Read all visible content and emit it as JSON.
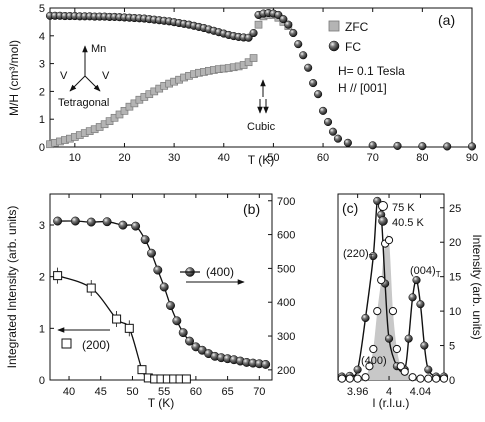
{
  "chart_data": [
    {
      "panel": "(a)",
      "type": "scatter",
      "xlabel": "T (K)",
      "ylabel": "M/H (cm³/mol)",
      "xlim": [
        5,
        90
      ],
      "ylim": [
        0,
        5
      ],
      "xticks": [
        10,
        20,
        30,
        40,
        50,
        60,
        70,
        80,
        90
      ],
      "yticks": [
        0,
        1,
        2,
        3,
        4,
        5
      ],
      "legend_position": "top-right",
      "series": [
        {
          "name": "ZFC",
          "marker": "square",
          "color": "#b4b4b4",
          "points": [
            [
              5,
              0.1
            ],
            [
              6,
              0.15
            ],
            [
              7,
              0.2
            ],
            [
              8,
              0.25
            ],
            [
              9,
              0.3
            ],
            [
              10,
              0.36
            ],
            [
              11,
              0.43
            ],
            [
              12,
              0.5
            ],
            [
              13,
              0.57
            ],
            [
              14,
              0.64
            ],
            [
              15,
              0.72
            ],
            [
              16,
              0.82
            ],
            [
              17,
              0.93
            ],
            [
              18,
              1.05
            ],
            [
              19,
              1.17
            ],
            [
              20,
              1.3
            ],
            [
              21,
              1.45
            ],
            [
              22,
              1.57
            ],
            [
              23,
              1.7
            ],
            [
              24,
              1.8
            ],
            [
              25,
              1.9
            ],
            [
              26,
              2.0
            ],
            [
              27,
              2.1
            ],
            [
              28,
              2.2
            ],
            [
              29,
              2.28
            ],
            [
              30,
              2.35
            ],
            [
              31,
              2.42
            ],
            [
              32,
              2.5
            ],
            [
              33,
              2.56
            ],
            [
              34,
              2.62
            ],
            [
              35,
              2.67
            ],
            [
              36,
              2.7
            ],
            [
              37,
              2.74
            ],
            [
              38,
              2.77
            ],
            [
              39,
              2.8
            ],
            [
              40,
              2.82
            ],
            [
              41,
              2.84
            ],
            [
              42,
              2.87
            ],
            [
              43,
              2.9
            ],
            [
              44,
              2.95
            ],
            [
              45,
              3.05
            ],
            [
              46,
              3.2
            ],
            [
              47,
              4.4
            ],
            [
              48,
              4.7
            ],
            [
              49,
              4.75
            ],
            [
              50,
              4.75
            ],
            [
              51,
              4.65
            ],
            [
              52,
              4.5
            ],
            [
              53,
              4.35
            ]
          ]
        },
        {
          "name": "FC",
          "marker": "sphere",
          "color": "#1a1a1a",
          "points": [
            [
              5,
              4.72
            ],
            [
              6,
              4.72
            ],
            [
              7,
              4.72
            ],
            [
              8,
              4.71
            ],
            [
              9,
              4.71
            ],
            [
              10,
              4.71
            ],
            [
              11,
              4.7
            ],
            [
              12,
              4.7
            ],
            [
              13,
              4.7
            ],
            [
              14,
              4.69
            ],
            [
              15,
              4.69
            ],
            [
              16,
              4.69
            ],
            [
              17,
              4.68
            ],
            [
              18,
              4.68
            ],
            [
              19,
              4.67
            ],
            [
              20,
              4.66
            ],
            [
              21,
              4.65
            ],
            [
              22,
              4.64
            ],
            [
              23,
              4.63
            ],
            [
              24,
              4.62
            ],
            [
              25,
              4.6
            ],
            [
              26,
              4.58
            ],
            [
              27,
              4.56
            ],
            [
              28,
              4.54
            ],
            [
              29,
              4.52
            ],
            [
              30,
              4.49
            ],
            [
              31,
              4.46
            ],
            [
              32,
              4.43
            ],
            [
              33,
              4.4
            ],
            [
              34,
              4.36
            ],
            [
              35,
              4.32
            ],
            [
              36,
              4.28
            ],
            [
              37,
              4.23
            ],
            [
              38,
              4.18
            ],
            [
              39,
              4.13
            ],
            [
              40,
              4.08
            ],
            [
              41,
              4.03
            ],
            [
              42,
              3.99
            ],
            [
              43,
              3.96
            ],
            [
              44,
              3.94
            ],
            [
              45,
              3.93
            ],
            [
              46,
              4.1
            ],
            [
              47,
              4.75
            ],
            [
              48,
              4.8
            ],
            [
              49,
              4.82
            ],
            [
              50,
              4.8
            ],
            [
              51,
              4.75
            ],
            [
              52,
              4.6
            ],
            [
              53,
              4.4
            ],
            [
              54,
              4.1
            ],
            [
              55,
              3.7
            ],
            [
              56,
              3.3
            ],
            [
              57,
              2.85
            ],
            [
              58,
              2.3
            ],
            [
              59,
              1.9
            ],
            [
              60,
              1.3
            ],
            [
              61,
              0.9
            ],
            [
              62,
              0.55
            ],
            [
              63,
              0.3
            ],
            [
              65,
              0.15
            ],
            [
              70,
              0.06
            ],
            [
              75,
              0.04
            ],
            [
              80,
              0.03
            ],
            [
              85,
              0.02
            ],
            [
              90,
              0.02
            ]
          ]
        }
      ],
      "annotations": {
        "field": "H= 0.1 Tesla",
        "direction": "H // [001]",
        "tetragonal": "Tetragonal",
        "cubic": "Cubic",
        "mn": "Mn",
        "v": "V"
      }
    },
    {
      "panel": "(b)",
      "type": "scatter",
      "xlabel": "T (K)",
      "ylabel_left": "Integrated Intensity (arb. units)",
      "xlim": [
        37,
        72
      ],
      "ylim_left": [
        0,
        3.6
      ],
      "ylim_right": [
        170,
        720
      ],
      "xticks": [
        40,
        45,
        50,
        55,
        60,
        65,
        70
      ],
      "yticks_left": [
        0,
        1,
        2,
        3
      ],
      "yticks_right": [
        200,
        300,
        400,
        500,
        600,
        700
      ],
      "series": [
        {
          "name": "(200)",
          "axis": "left",
          "marker": "open-square",
          "points": [
            [
              38.2,
              2.02
            ],
            [
              43.5,
              1.78
            ],
            [
              47.5,
              1.18
            ],
            [
              49.5,
              1.0
            ],
            [
              51.5,
              0.2
            ],
            [
              52.5,
              0.04
            ],
            [
              53.5,
              0.02
            ],
            [
              54.5,
              0.02
            ],
            [
              55.5,
              0.02
            ],
            [
              56.5,
              0.02
            ],
            [
              57.5,
              0.02
            ],
            [
              58.5,
              0.02
            ]
          ]
        },
        {
          "name": "(400)",
          "axis": "right",
          "marker": "sphere",
          "points": [
            [
              38.2,
              640
            ],
            [
              41,
              640
            ],
            [
              43.5,
              637
            ],
            [
              46,
              638
            ],
            [
              48.5,
              628
            ],
            [
              50.5,
              625
            ],
            [
              52,
              585
            ],
            [
              53,
              545
            ],
            [
              54,
              495
            ],
            [
              55,
              445
            ],
            [
              56,
              390
            ],
            [
              57,
              345
            ],
            [
              58,
              310
            ],
            [
              59,
              285
            ],
            [
              60,
              268
            ],
            [
              61,
              258
            ],
            [
              62,
              248
            ],
            [
              63,
              240
            ],
            [
              64,
              236
            ],
            [
              65,
              233
            ],
            [
              66,
              230
            ],
            [
              67,
              226
            ],
            [
              68,
              222
            ],
            [
              69,
              220
            ],
            [
              70,
              218
            ],
            [
              71,
              216
            ]
          ]
        }
      ]
    },
    {
      "panel": "(c)",
      "type": "line",
      "xlabel": "l (r.l.u.)",
      "ylabel_right": "Intensity (arb. units)",
      "xlim": [
        3.935,
        4.07
      ],
      "ylim": [
        0,
        27
      ],
      "xticks": [
        3.96,
        4.0,
        4.04
      ],
      "yticks": [
        0,
        5,
        10,
        15,
        20,
        25
      ],
      "legend_position": "top-right",
      "series": [
        {
          "name": "75 K",
          "marker": "open-circle",
          "points": [
            [
              3.94,
              0.2
            ],
            [
              3.95,
              0.2
            ],
            [
              3.96,
              0.2
            ],
            [
              3.97,
              0.4
            ],
            [
              3.975,
              2
            ],
            [
              3.98,
              4.5
            ],
            [
              3.985,
              10
            ],
            [
              3.99,
              14.5
            ],
            [
              3.995,
              19.8
            ],
            [
              4.0,
              20.3
            ],
            [
              4.005,
              10
            ],
            [
              4.01,
              4.5
            ],
            [
              4.015,
              2
            ],
            [
              4.02,
              1.2
            ],
            [
              4.03,
              0.4
            ],
            [
              4.04,
              0.2
            ],
            [
              4.05,
              0.2
            ],
            [
              4.06,
              0.2
            ],
            [
              4.07,
              0.2
            ]
          ]
        },
        {
          "name": "40.5 K",
          "marker": "sphere",
          "points": [
            [
              3.94,
              0.5
            ],
            [
              3.95,
              0.6
            ],
            [
              3.96,
              1.5
            ],
            [
              3.97,
              9
            ],
            [
              3.98,
              18
            ],
            [
              3.985,
              26
            ],
            [
              3.99,
              24
            ],
            [
              3.995,
              14
            ],
            [
              4.0,
              6
            ],
            [
              4.01,
              2
            ],
            [
              4.02,
              1.5
            ],
            [
              4.025,
              6
            ],
            [
              4.03,
              12
            ],
            [
              4.035,
              14.5
            ],
            [
              4.04,
              11
            ],
            [
              4.045,
              5
            ],
            [
              4.05,
              1.5
            ],
            [
              4.06,
              0.5
            ],
            [
              4.07,
              0.5
            ]
          ]
        }
      ],
      "annotations": {
        "peak_220": "(220)",
        "peak_004": "(004)",
        "subscript": "T",
        "cubic_peak": "(400)"
      }
    }
  ]
}
